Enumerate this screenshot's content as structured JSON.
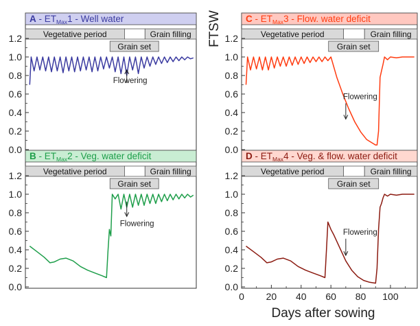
{
  "figure": {
    "y_axis_label": "FTSW",
    "x_axis_label": "Days after sowing"
  },
  "phases": {
    "vegetative": "Vegetative period",
    "grain_set": "Grain set",
    "grain_filling": "Grain filling"
  },
  "annotation": "Flowering",
  "colors": {
    "A": "#3a3aa0",
    "B": "#1e9e4a",
    "C": "#ff3b10",
    "D": "#8b1a10",
    "A_bg": "#cfcff0",
    "B_bg": "#c9edd3",
    "C_bg": "#ffc8c0",
    "D_bg": "#ffd8d0"
  },
  "chart_data": [
    {
      "id": "A",
      "type": "line",
      "title": {
        "letter": "A",
        "prefix": " - ET",
        "sub": "Max",
        "suffix": "1 - Well water"
      },
      "ylim": [
        0,
        1.2
      ],
      "yticks": [
        "0.0",
        "0.2",
        "0.4",
        "0.6",
        "0.8",
        "1.0",
        "1.2"
      ],
      "xlim": [
        0,
        118
      ],
      "xticks": [],
      "show_x_ticks": false,
      "flowering_day": 70,
      "x": [
        3,
        4,
        6,
        8,
        10,
        12,
        14,
        16,
        18,
        20,
        22,
        24,
        26,
        28,
        30,
        32,
        34,
        36,
        38,
        40,
        42,
        44,
        46,
        48,
        50,
        52,
        54,
        56,
        58,
        60,
        62,
        64,
        66,
        68,
        70,
        72,
        74,
        76,
        78,
        80,
        82,
        84,
        86,
        88,
        90,
        92,
        94,
        96,
        98,
        100,
        102,
        104,
        106,
        108,
        110,
        112,
        114,
        116
      ],
      "y": [
        0.7,
        1.0,
        0.85,
        1.0,
        0.86,
        1.0,
        0.85,
        1.0,
        0.84,
        1.0,
        0.85,
        1.0,
        0.83,
        1.0,
        0.85,
        1.0,
        0.84,
        1.0,
        0.85,
        1.0,
        0.86,
        1.0,
        0.84,
        1.0,
        0.85,
        1.0,
        0.87,
        1.0,
        0.88,
        1.0,
        0.84,
        1.0,
        0.82,
        1.0,
        0.8,
        1.0,
        0.86,
        1.0,
        0.82,
        1.0,
        0.88,
        1.0,
        0.9,
        1.0,
        0.92,
        1.0,
        0.93,
        1.0,
        0.94,
        1.0,
        0.95,
        1.0,
        0.96,
        1.0,
        0.97,
        1.0,
        0.98,
        0.99
      ]
    },
    {
      "id": "B",
      "type": "line",
      "title": {
        "letter": "B",
        "prefix": " - ET",
        "sub": "Max",
        "suffix": "2 - Veg. water deficit"
      },
      "ylim": [
        0,
        1.2
      ],
      "yticks": [
        "0.0",
        "0.2",
        "0.4",
        "0.6",
        "0.8",
        "1.0",
        "1.2"
      ],
      "xlim": [
        0,
        118
      ],
      "xticks": [],
      "show_x_ticks": false,
      "flowering_day": 70,
      "x": [
        3,
        8,
        13,
        17,
        20,
        24,
        28,
        33,
        38,
        43,
        48,
        53,
        56,
        57,
        58,
        59,
        60,
        62,
        64,
        66,
        68,
        70,
        72,
        74,
        76,
        78,
        80,
        82,
        84,
        86,
        88,
        90,
        92,
        94,
        96,
        98,
        100,
        102,
        104,
        106,
        108,
        110,
        112,
        114,
        116
      ],
      "y": [
        0.44,
        0.38,
        0.32,
        0.26,
        0.27,
        0.3,
        0.31,
        0.28,
        0.22,
        0.18,
        0.15,
        0.12,
        0.1,
        0.38,
        0.62,
        0.55,
        1.0,
        0.95,
        1.0,
        0.84,
        1.0,
        0.86,
        1.0,
        0.86,
        1.0,
        0.88,
        1.0,
        0.88,
        1.0,
        0.9,
        1.0,
        0.9,
        1.0,
        0.92,
        1.0,
        0.93,
        1.0,
        0.94,
        1.0,
        0.95,
        1.0,
        0.96,
        1.0,
        0.97,
        0.99
      ]
    },
    {
      "id": "C",
      "type": "line",
      "title": {
        "letter": "C",
        "prefix": " - ET",
        "sub": "Max",
        "suffix": "3 - Flow. water deficit"
      },
      "ylim": [
        0,
        1.2
      ],
      "yticks": [
        "0.0",
        "0.2",
        "0.4",
        "0.6",
        "0.8",
        "1.0",
        "1.2"
      ],
      "xlim": [
        0,
        118
      ],
      "xticks": [],
      "show_x_ticks": false,
      "flowering_day": 70,
      "x": [
        3,
        4,
        6,
        8,
        10,
        12,
        14,
        16,
        18,
        20,
        22,
        24,
        26,
        28,
        30,
        32,
        34,
        36,
        38,
        40,
        42,
        44,
        46,
        48,
        50,
        52,
        54,
        56,
        58,
        60,
        64,
        68,
        72,
        76,
        80,
        84,
        88,
        90,
        91,
        92,
        93,
        94,
        95,
        96,
        98,
        100,
        104,
        108,
        112,
        116
      ],
      "y": [
        0.7,
        1.0,
        0.86,
        1.0,
        0.87,
        1.0,
        0.86,
        1.0,
        0.86,
        1.0,
        0.88,
        1.0,
        0.9,
        1.0,
        0.9,
        1.0,
        0.91,
        1.0,
        0.92,
        1.0,
        0.93,
        1.0,
        0.94,
        1.0,
        0.95,
        1.0,
        0.95,
        1.0,
        0.96,
        1.0,
        0.78,
        0.6,
        0.44,
        0.3,
        0.19,
        0.11,
        0.07,
        0.05,
        0.05,
        0.2,
        0.78,
        0.85,
        0.92,
        1.0,
        0.97,
        1.0,
        0.99,
        1.0,
        1.0,
        1.0
      ]
    },
    {
      "id": "D",
      "type": "line",
      "title": {
        "letter": "D",
        "prefix": " - ET",
        "sub": "Max",
        "suffix": "4 - Veg. & flow. water deficit"
      },
      "ylim": [
        0,
        1.2
      ],
      "yticks": [
        "0.0",
        "0.2",
        "0.4",
        "0.6",
        "0.8",
        "1.0",
        "1.2"
      ],
      "xlim": [
        0,
        118
      ],
      "xticks": [
        "0",
        "20",
        "40",
        "60",
        "80",
        "100"
      ],
      "show_x_ticks": true,
      "flowering_day": 70,
      "x": [
        3,
        8,
        13,
        17,
        20,
        24,
        28,
        33,
        38,
        43,
        48,
        53,
        56,
        57,
        58,
        60,
        62,
        66,
        70,
        74,
        78,
        82,
        86,
        90,
        91,
        92,
        93,
        94,
        95,
        96,
        98,
        100,
        104,
        108,
        112,
        116
      ],
      "y": [
        0.44,
        0.38,
        0.32,
        0.26,
        0.27,
        0.3,
        0.31,
        0.28,
        0.22,
        0.18,
        0.15,
        0.12,
        0.1,
        0.4,
        0.7,
        0.62,
        0.56,
        0.42,
        0.28,
        0.18,
        0.11,
        0.07,
        0.05,
        0.04,
        0.2,
        0.62,
        0.86,
        0.9,
        0.96,
        1.0,
        0.98,
        1.0,
        0.99,
        1.0,
        1.0,
        1.0
      ]
    }
  ]
}
